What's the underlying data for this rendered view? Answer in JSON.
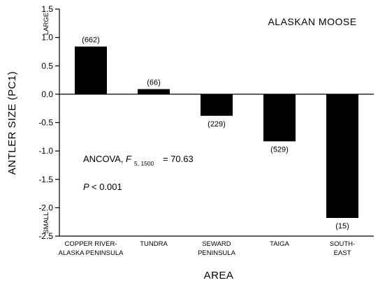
{
  "chart_data": {
    "type": "bar",
    "title": "ALASKAN MOOSE",
    "xlabel": "AREA",
    "ylabel": "ANTLER SIZE (PC1)",
    "ylim": [
      -2.5,
      1.5
    ],
    "yticks": [
      "1.5",
      "1.0",
      "0.5",
      "0.0",
      "-0.5",
      "-1.0",
      "-1.5",
      "-2.0",
      "-2.5"
    ],
    "y_extreme_labels": {
      "top": "LARGE",
      "bottom": "SMALL"
    },
    "categories": [
      [
        "COPPER RIVER-",
        "ALASKA PENINSULA"
      ],
      [
        "TUNDRA"
      ],
      [
        "SEWARD",
        "PENINSULA"
      ],
      [
        "TAIGA"
      ],
      [
        "SOUTH-",
        "EAST"
      ]
    ],
    "values": [
      0.84,
      0.09,
      -0.38,
      -0.83,
      -2.18
    ],
    "n_labels": [
      "(662)",
      "(66)",
      "(229)",
      "(529)",
      "(15)"
    ],
    "annotations": {
      "ancova_prefix": "ANCOVA,",
      "f_letter": "F",
      "f_subscript": "5, 1500",
      "f_value": "= 70.63",
      "p_letter": "P",
      "p_value": "< 0.001"
    },
    "grid": false,
    "legend": "none"
  }
}
